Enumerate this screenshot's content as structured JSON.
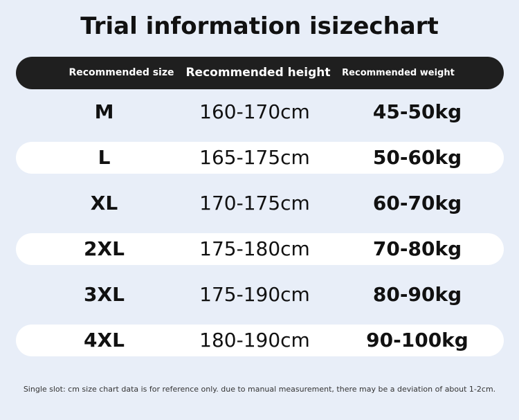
{
  "title": "Trial information isizechart",
  "table": {
    "header": [
      "Recommended size",
      "Recommended height",
      "Recommended weight"
    ],
    "rows": [
      [
        "M",
        "160-170cm",
        "45-50kg"
      ],
      [
        "L",
        "165-175cm",
        "50-60kg"
      ],
      [
        "XL",
        "170-175cm",
        "60-70kg"
      ],
      [
        "2XL",
        "175-180cm",
        "70-80kg"
      ],
      [
        "3XL",
        "175-190cm",
        "80-90kg"
      ],
      [
        "4XL",
        "180-190cm",
        "90-100kg"
      ]
    ]
  },
  "footnote": "Single slot: cm size chart data is for reference only. due to manual measurement, there may be a deviation of about 1-2cm."
}
